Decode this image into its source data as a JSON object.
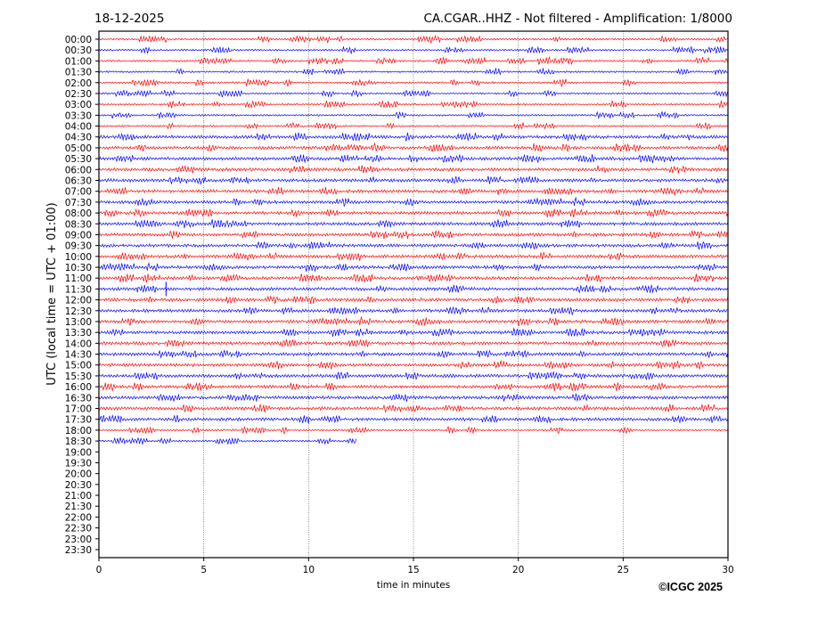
{
  "chart_data": {
    "type": "line",
    "title_left": "18-12-2025",
    "title_right": "CA.CGAR..HHZ - Not filtered - Amplification: 1/8000",
    "xlabel": "time in minutes",
    "ylabel": "UTC (local time = UTC + 01:00)",
    "xlim": [
      0,
      30
    ],
    "xticks": [
      0,
      5,
      10,
      15,
      20,
      25,
      30
    ],
    "grid": "vertical dotted at each x tick",
    "row_labels": [
      "00:00",
      "00:30",
      "01:00",
      "01:30",
      "02:00",
      "02:30",
      "03:00",
      "03:30",
      "04:00",
      "04:30",
      "05:00",
      "05:30",
      "06:00",
      "06:30",
      "07:00",
      "07:30",
      "08:00",
      "08:30",
      "09:00",
      "09:30",
      "10:00",
      "10:30",
      "11:00",
      "11:30",
      "12:00",
      "12:30",
      "13:00",
      "13:30",
      "14:00",
      "14:30",
      "15:00",
      "15:30",
      "16:00",
      "16:30",
      "17:00",
      "17:30",
      "18:00",
      "18:30",
      "19:00",
      "19:30",
      "20:00",
      "20:30",
      "21:00",
      "21:30",
      "22:00",
      "22:30",
      "23:00",
      "23:30"
    ],
    "rows_with_data": 38,
    "last_row_end_minute": 12.3,
    "trace_colors": [
      "#ff0000",
      "#0000ff"
    ],
    "events": [
      {
        "row": "11:30",
        "minute": 3.2
      }
    ],
    "copyright": "©ICGC 2025"
  }
}
